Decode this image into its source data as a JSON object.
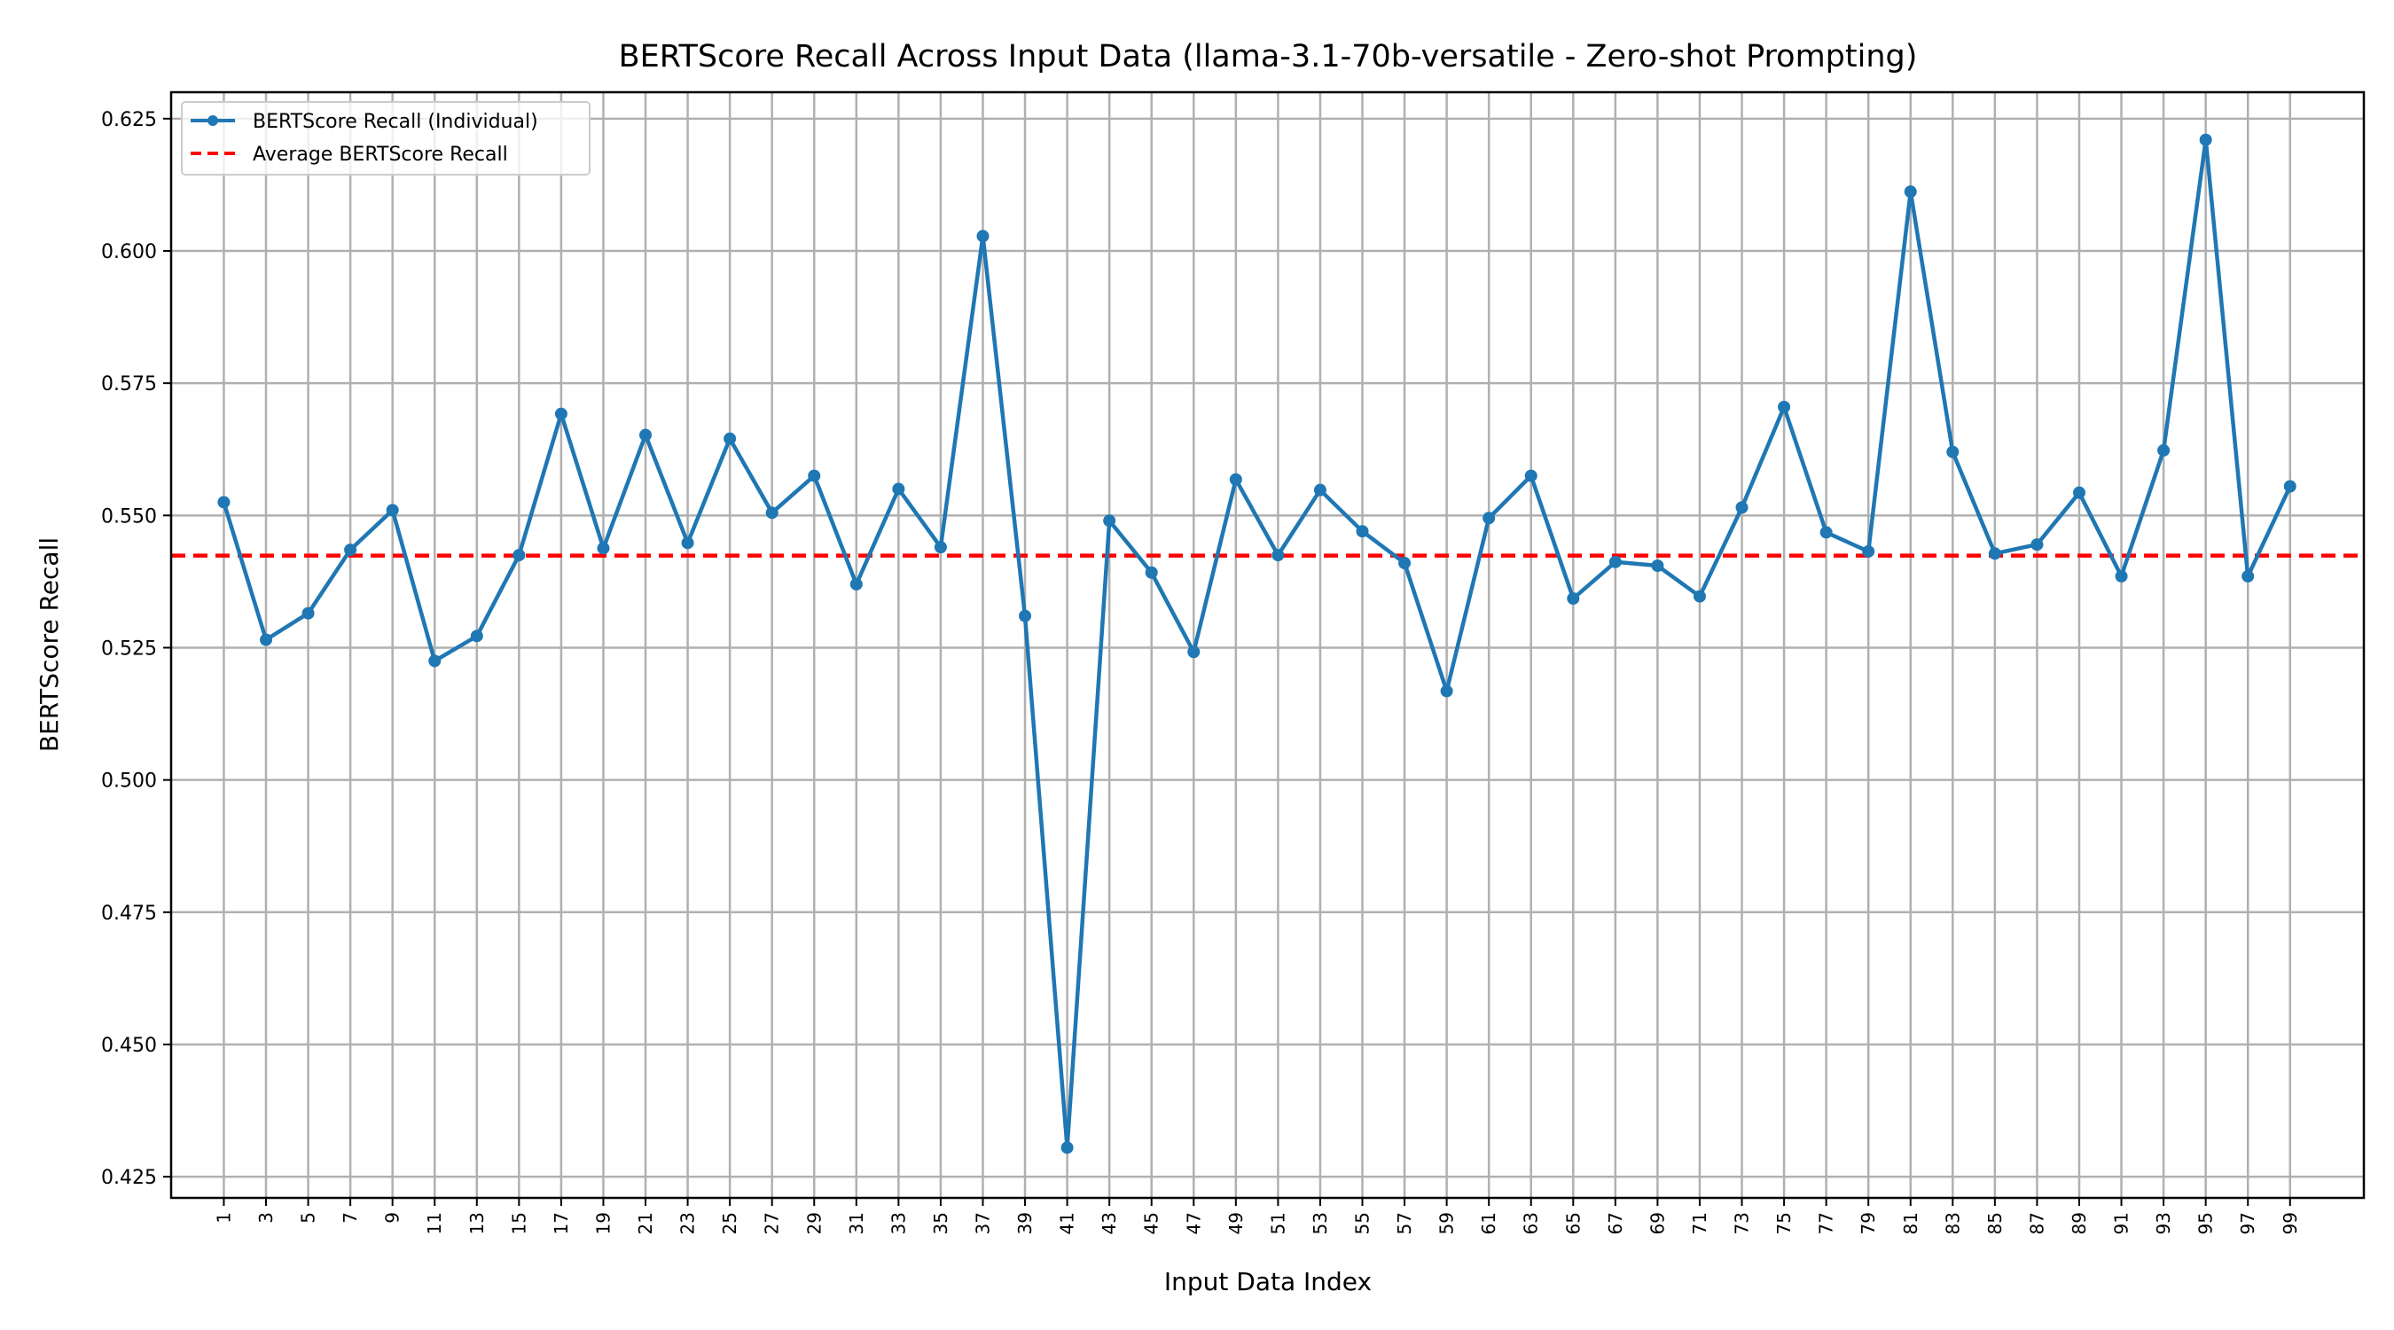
{
  "chart_data": {
    "type": "line",
    "title": "BERTScore Recall Across Input Data (llama-3.1-70b-versatile - Zero-shot Prompting)",
    "xlabel": "Input Data Index",
    "ylabel": "BERTScore Recall",
    "xlim": [
      -1.5,
      102.5
    ],
    "ylim": [
      0.421,
      0.63
    ],
    "grid": true,
    "legend_position": "top-left",
    "x": [
      1,
      3,
      5,
      7,
      9,
      11,
      13,
      15,
      17,
      19,
      21,
      23,
      25,
      27,
      29,
      31,
      33,
      35,
      37,
      39,
      41,
      43,
      45,
      47,
      49,
      51,
      53,
      55,
      57,
      59,
      61,
      63,
      65,
      67,
      69,
      71,
      73,
      75,
      77,
      79,
      81,
      83,
      85,
      87,
      89,
      91,
      93,
      95,
      97,
      99
    ],
    "x_tick_labels": [
      "1",
      "3",
      "5",
      "7",
      "9",
      "11",
      "13",
      "15",
      "17",
      "19",
      "21",
      "23",
      "25",
      "27",
      "29",
      "31",
      "33",
      "35",
      "37",
      "39",
      "41",
      "43",
      "45",
      "47",
      "49",
      "51",
      "53",
      "55",
      "57",
      "59",
      "61",
      "63",
      "65",
      "67",
      "69",
      "71",
      "73",
      "75",
      "77",
      "79",
      "81",
      "83",
      "85",
      "87",
      "89",
      "91",
      "93",
      "95",
      "97",
      "99"
    ],
    "y_ticks": [
      0.425,
      0.45,
      0.475,
      0.5,
      0.525,
      0.55,
      0.575,
      0.6,
      0.625
    ],
    "y_tick_labels": [
      "0.425",
      "0.450",
      "0.475",
      "0.500",
      "0.525",
      "0.550",
      "0.575",
      "0.600",
      "0.625"
    ],
    "series": [
      {
        "name": "BERTScore Recall (Individual)",
        "color": "#1f77b4",
        "style": "solid-with-markers",
        "values": [
          0.5525,
          0.5265,
          0.5315,
          0.5435,
          0.551,
          0.5225,
          0.5272,
          0.5425,
          0.5692,
          0.5438,
          0.5652,
          0.5448,
          0.5645,
          0.5505,
          0.5575,
          0.537,
          0.555,
          0.544,
          0.6028,
          0.531,
          0.4305,
          0.549,
          0.5392,
          0.5242,
          0.5568,
          0.5425,
          0.5548,
          0.547,
          0.541,
          0.5168,
          0.5495,
          0.5575,
          0.5343,
          0.5412,
          0.5405,
          0.5347,
          0.5515,
          0.5705,
          0.5468,
          0.5432,
          0.6112,
          0.562,
          0.5428,
          0.5445,
          0.5543,
          0.5385,
          0.5623,
          0.621,
          0.5385,
          0.5555
        ]
      }
    ],
    "reference_lines": [
      {
        "name": "Average BERTScore Recall",
        "y": 0.5424,
        "color": "#ff0000",
        "style": "dashed"
      }
    ]
  }
}
